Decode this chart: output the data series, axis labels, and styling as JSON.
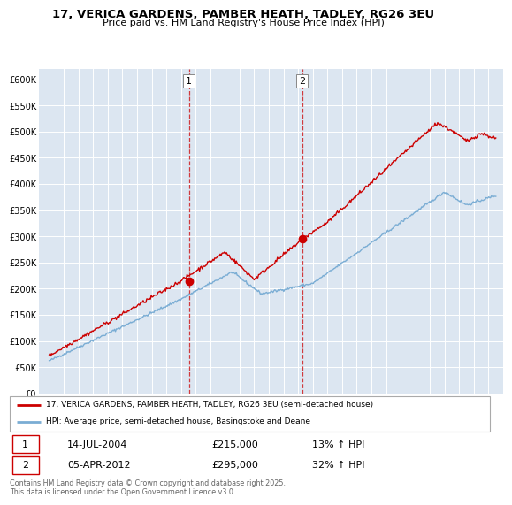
{
  "title_line1": "17, VERICA GARDENS, PAMBER HEATH, TADLEY, RG26 3EU",
  "title_line2": "Price paid vs. HM Land Registry's House Price Index (HPI)",
  "ylabel_ticks": [
    "£0",
    "£50K",
    "£100K",
    "£150K",
    "£200K",
    "£250K",
    "£300K",
    "£350K",
    "£400K",
    "£450K",
    "£500K",
    "£550K",
    "£600K"
  ],
  "ytick_values": [
    0,
    50000,
    100000,
    150000,
    200000,
    250000,
    300000,
    350000,
    400000,
    450000,
    500000,
    550000,
    600000
  ],
  "sold_color": "#cc0000",
  "hpi_color": "#7aadd4",
  "vline_color": "#cc0000",
  "plot_bg_color": "#dce6f1",
  "annotation1": {
    "label": "1",
    "date": "14-JUL-2004",
    "price": "£215,000",
    "hpi": "13% ↑ HPI"
  },
  "annotation2": {
    "label": "2",
    "date": "05-APR-2012",
    "price": "£295,000",
    "hpi": "32% ↑ HPI"
  },
  "legend_line1": "17, VERICA GARDENS, PAMBER HEATH, TADLEY, RG26 3EU (semi-detached house)",
  "legend_line2": "HPI: Average price, semi-detached house, Basingstoke and Deane",
  "footer": "Contains HM Land Registry data © Crown copyright and database right 2025.\nThis data is licensed under the Open Government Licence v3.0.",
  "ylim": [
    0,
    620000
  ],
  "sale1_x": 2004.54,
  "sale1_y": 215000,
  "sale2_x": 2012.27,
  "sale2_y": 295000,
  "xlim_left": 1994.3,
  "xlim_right": 2026.0
}
